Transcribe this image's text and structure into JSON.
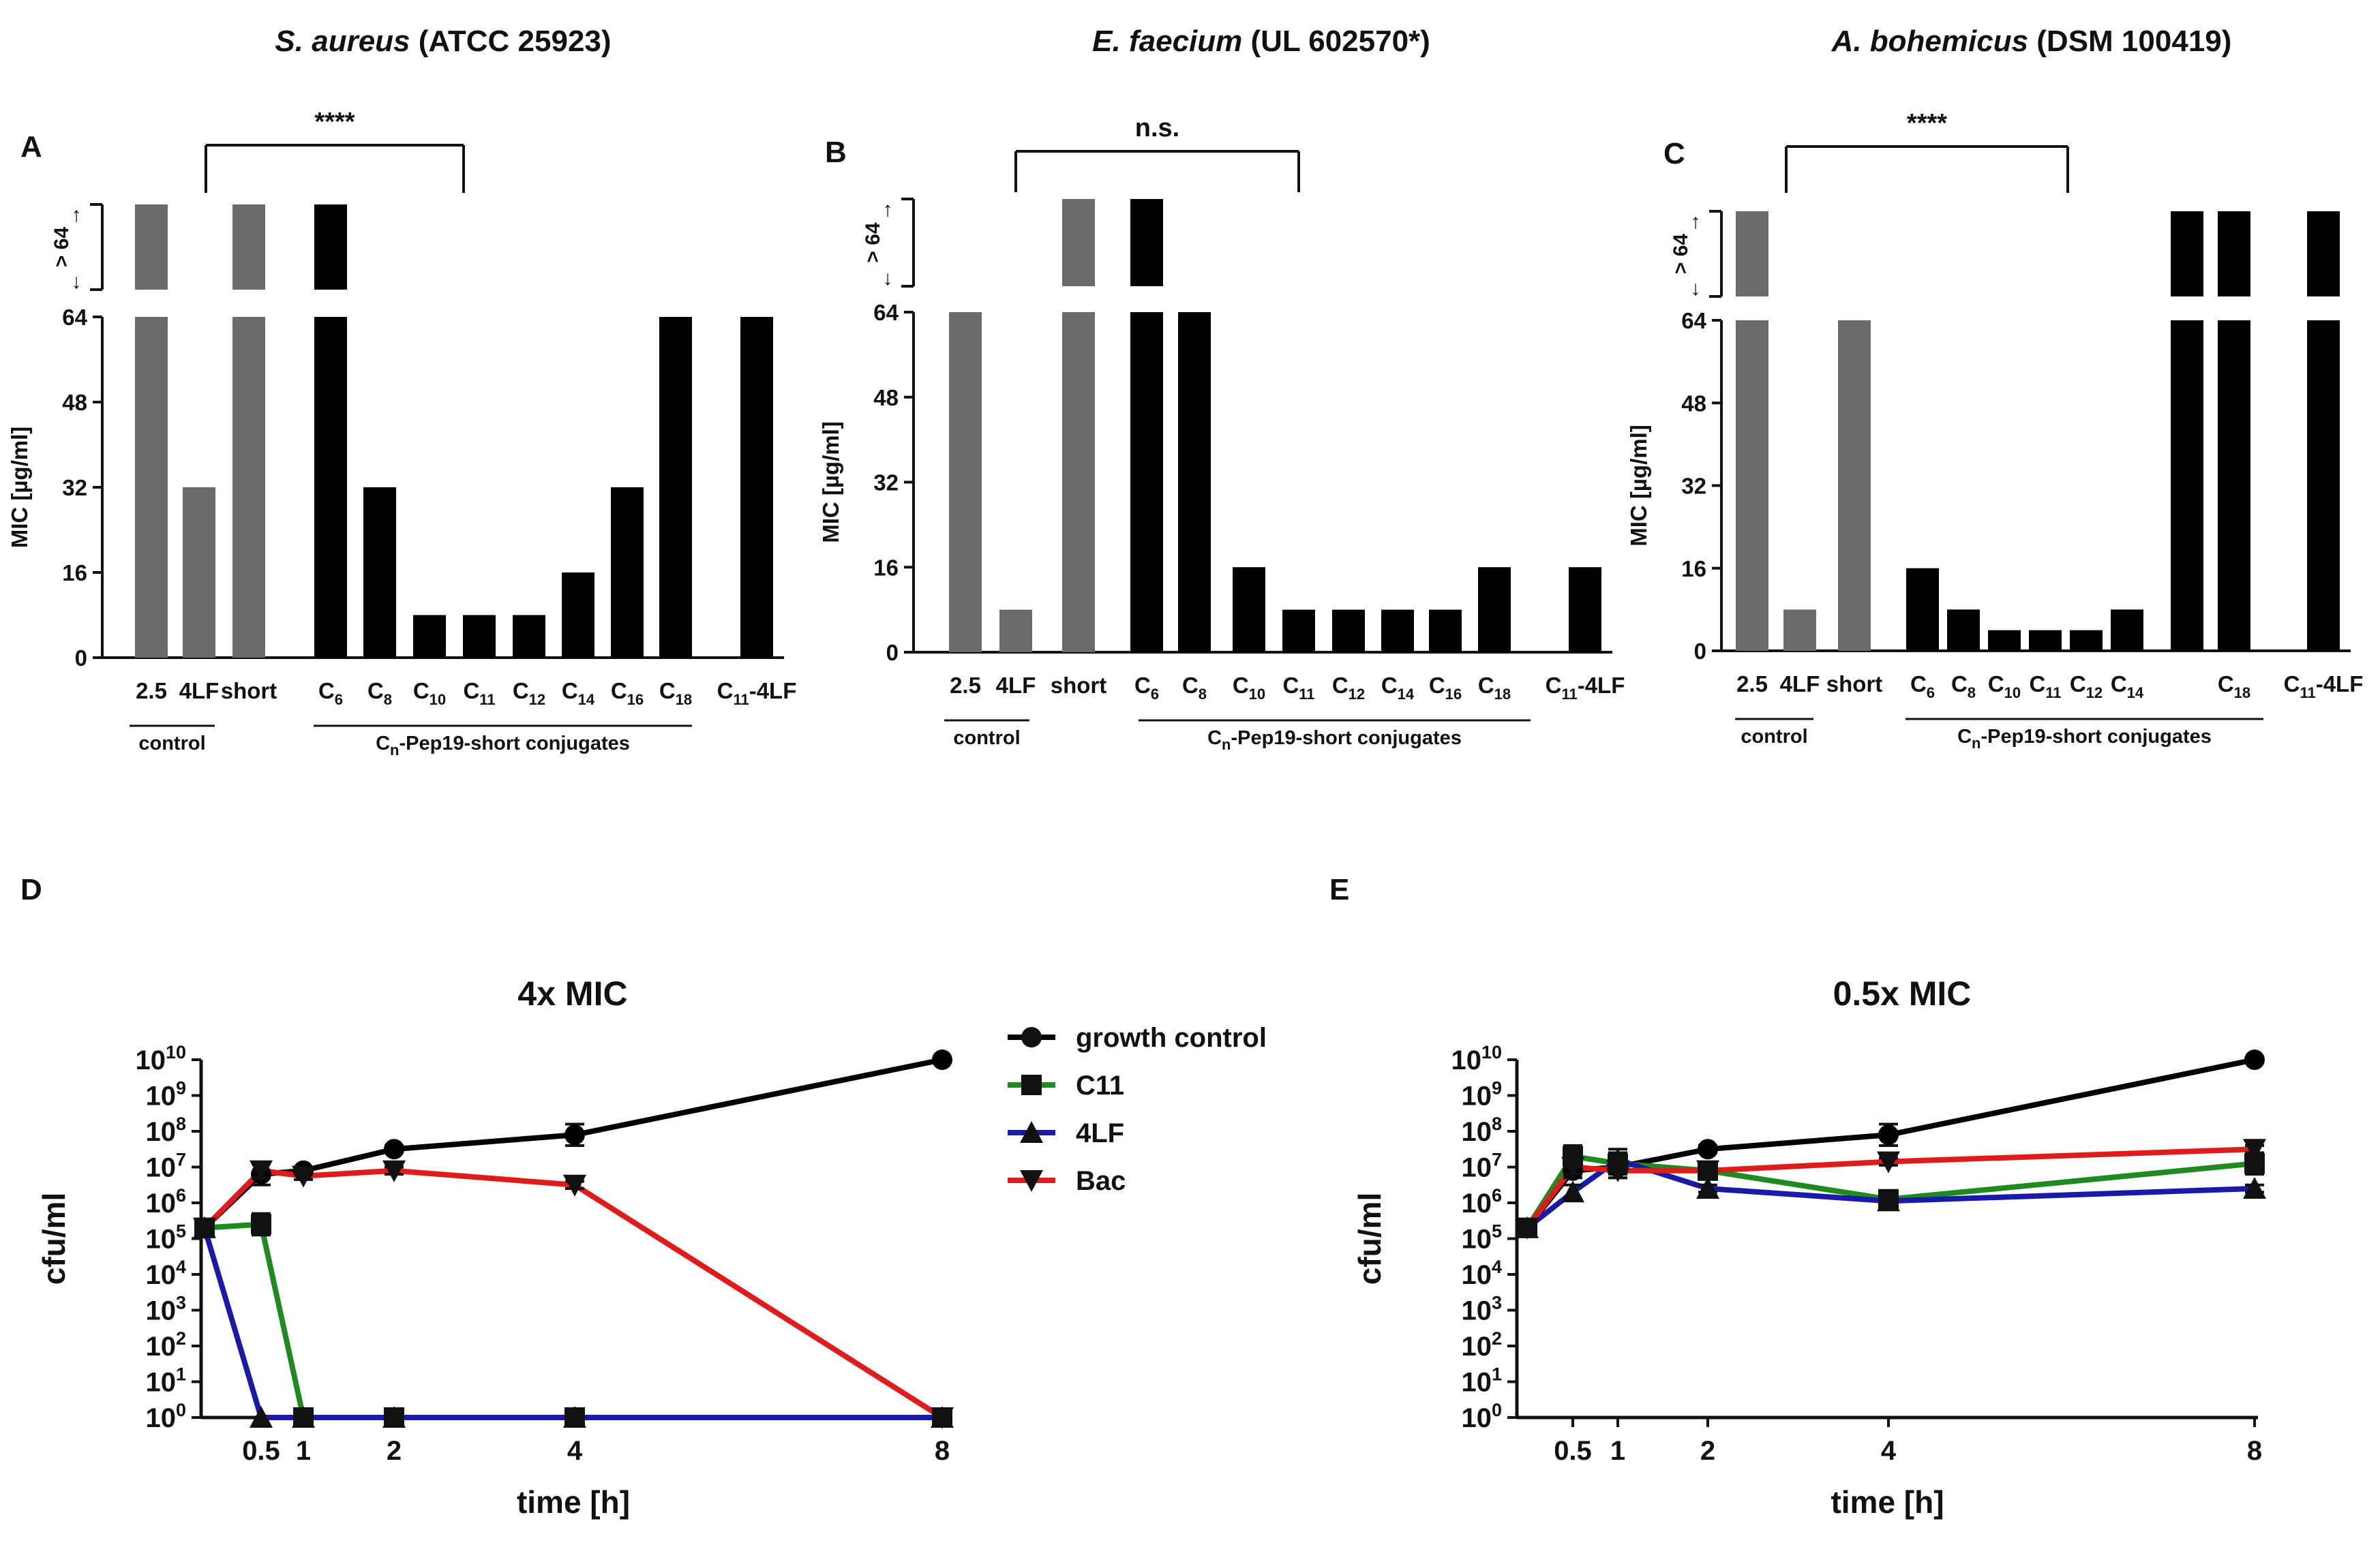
{
  "figure": {
    "panels": [
      {
        "letter": "A",
        "organism": "S. aureus",
        "strain": "(ATCC 25923)",
        "significance": "****"
      },
      {
        "letter": "B",
        "organism": "E. faecium",
        "strain": "(UL 602570*)",
        "significance": "n.s."
      },
      {
        "letter": "C",
        "organism": "A. bohemicus",
        "strain": "(DSM 100419)",
        "significance": "****"
      },
      {
        "letter": "D",
        "title": "4x MIC"
      },
      {
        "letter": "E",
        "title": "0.5x MIC"
      }
    ],
    "gt64_label": "> 64",
    "control_label": "control",
    "conjugates_label_pre": "C",
    "conjugates_label_sub": "n",
    "conjugates_label_post": "-Pep19-short conjugates",
    "legend": [
      "growth control",
      "C11",
      "4LF",
      "Bac"
    ]
  },
  "colors": {
    "control_bar": "#6b6b6b",
    "conjugate_bar": "#000000",
    "growth_control": "#000000",
    "C11": "#1f8a1f",
    "4LF": "#1a1aa8",
    "Bac": "#e01b1b"
  },
  "chart_data": [
    {
      "type": "bar",
      "panel": "A",
      "title": "S. aureus (ATCC 25923)",
      "ylabel": "MIC [µg/ml]",
      "ylim": [
        0,
        64
      ],
      "yticks": [
        "0",
        "16",
        "32",
        "48",
        "64"
      ],
      "categories": [
        "2.5",
        "4LF",
        "short",
        "C6",
        "C8",
        "C10",
        "C11",
        "C12",
        "C14",
        "C16",
        "C18",
        "C11-4LF"
      ],
      "values": [
        ">64",
        32,
        ">64",
        ">64",
        32,
        8,
        8,
        8,
        16,
        32,
        64,
        64
      ],
      "groups": {
        "control": [
          "2.5",
          "4LF"
        ],
        "Cn-Pep19-short conjugates": [
          "C6",
          "C8",
          "C10",
          "C11",
          "C12",
          "C14",
          "C16",
          "C18"
        ]
      },
      "comparison": {
        "between": [
          "4LF",
          "C11"
        ],
        "label": "****"
      }
    },
    {
      "type": "bar",
      "panel": "B",
      "title": "E. faecium (UL 602570*)",
      "ylabel": "MIC [µg/ml]",
      "ylim": [
        0,
        64
      ],
      "yticks": [
        "0",
        "16",
        "32",
        "48",
        "64"
      ],
      "categories": [
        "2.5",
        "4LF",
        "short",
        "C6",
        "C8",
        "C10",
        "C11",
        "C12",
        "C14",
        "C16",
        "C18",
        "C11-4LF"
      ],
      "values": [
        64,
        8,
        ">64",
        ">64",
        64,
        16,
        8,
        8,
        8,
        8,
        16,
        16
      ],
      "groups": {
        "control": [
          "2.5",
          "4LF"
        ],
        "Cn-Pep19-short conjugates": [
          "C6",
          "C8",
          "C10",
          "C11",
          "C12",
          "C14",
          "C16",
          "C18"
        ]
      },
      "comparison": {
        "between": [
          "4LF",
          "C11"
        ],
        "label": "n.s."
      }
    },
    {
      "type": "bar",
      "panel": "C",
      "title": "A. bohemicus (DSM 100419)",
      "ylabel": "MIC [µg/ml]",
      "ylim": [
        0,
        64
      ],
      "yticks": [
        "0",
        "16",
        "32",
        "48",
        "64"
      ],
      "categories": [
        "2.5",
        "4LF",
        "short",
        "C6",
        "C8",
        "C10",
        "C11",
        "C12",
        "C14",
        "",
        "C18",
        "C11-4LF"
      ],
      "values": [
        ">64",
        8,
        64,
        16,
        8,
        4,
        4,
        4,
        8,
        ">64",
        ">64",
        ">64"
      ],
      "groups": {
        "control": [
          "2.5",
          "4LF"
        ],
        "Cn-Pep19-short conjugates": [
          "C6",
          "C8",
          "C10",
          "C11",
          "C12",
          "C14",
          "",
          "C18"
        ]
      },
      "comparison": {
        "between": [
          "4LF",
          "C11"
        ],
        "label": "****"
      }
    },
    {
      "type": "line",
      "panel": "D",
      "title": "4x MIC",
      "xlabel": "time [h]",
      "ylabel": "cfu/ml",
      "yscale": "log10",
      "ylim": [
        0,
        10
      ],
      "yticks": [
        "0",
        "1",
        "2",
        "3",
        "4",
        "5",
        "6",
        "7",
        "8",
        "9",
        "10"
      ],
      "xticks": [
        "0.5",
        "1",
        "2",
        "4",
        "8"
      ],
      "series": [
        {
          "name": "growth control",
          "marker": "circle",
          "x": [
            0,
            0.5,
            1,
            2,
            4,
            8
          ],
          "log10_y": [
            5.3,
            6.8,
            6.9,
            7.5,
            7.9,
            10.0
          ],
          "err": [
            0,
            0.3,
            0.1,
            0.1,
            0.3,
            0
          ]
        },
        {
          "name": "C11",
          "marker": "square",
          "x": [
            0,
            0.5,
            1,
            2,
            4,
            8
          ],
          "log10_y": [
            5.3,
            5.4,
            0,
            0,
            0,
            0
          ],
          "err": [
            0,
            0.3,
            0,
            0,
            0,
            0
          ]
        },
        {
          "name": "4LF",
          "marker": "triangle-up",
          "x": [
            0,
            0.5,
            1,
            2,
            4,
            8
          ],
          "log10_y": [
            5.3,
            0,
            0,
            0,
            0,
            0
          ],
          "err": [
            0,
            0,
            0,
            0,
            0,
            0
          ]
        },
        {
          "name": "Bac",
          "marker": "triangle-down",
          "x": [
            0,
            0.5,
            1,
            2,
            4,
            8
          ],
          "log10_y": [
            5.3,
            6.9,
            6.75,
            6.9,
            6.5,
            0
          ],
          "err": [
            0,
            0.2,
            0.1,
            0.1,
            0.1,
            0
          ]
        }
      ]
    },
    {
      "type": "line",
      "panel": "E",
      "title": "0.5x MIC",
      "xlabel": "time [h]",
      "ylabel": "cfu/ml",
      "yscale": "log10",
      "ylim": [
        0,
        10
      ],
      "yticks": [
        "0",
        "1",
        "2",
        "3",
        "4",
        "5",
        "6",
        "7",
        "8",
        "9",
        "10"
      ],
      "xticks": [
        "0.5",
        "1",
        "2",
        "4",
        "8"
      ],
      "series": [
        {
          "name": "growth control",
          "marker": "circle",
          "x": [
            0,
            0.5,
            1,
            2,
            4,
            8
          ],
          "log10_y": [
            5.3,
            6.9,
            7.0,
            7.5,
            7.9,
            10.0
          ],
          "err": [
            0,
            0.2,
            0.2,
            0.1,
            0.3,
            0
          ]
        },
        {
          "name": "C11",
          "marker": "square",
          "x": [
            0,
            0.5,
            1,
            2,
            4,
            8
          ],
          "log10_y": [
            5.3,
            7.3,
            7.1,
            6.9,
            6.1,
            7.1
          ],
          "err": [
            0,
            0.3,
            0.4,
            0.2,
            0.1,
            0.3
          ]
        },
        {
          "name": "4LF",
          "marker": "triangle-up",
          "x": [
            0,
            0.5,
            1,
            2,
            4,
            8
          ],
          "log10_y": [
            5.3,
            6.3,
            7.2,
            6.4,
            6.05,
            6.4
          ],
          "err": [
            0,
            0.2,
            0.2,
            0.1,
            0.1,
            0.1
          ]
        },
        {
          "name": "Bac",
          "marker": "triangle-down",
          "x": [
            0,
            0.5,
            1,
            2,
            4,
            8
          ],
          "log10_y": [
            5.3,
            7.0,
            6.9,
            6.9,
            7.15,
            7.5
          ],
          "err": [
            0,
            0.2,
            0.2,
            0.1,
            0.1,
            0.1
          ]
        }
      ]
    }
  ]
}
